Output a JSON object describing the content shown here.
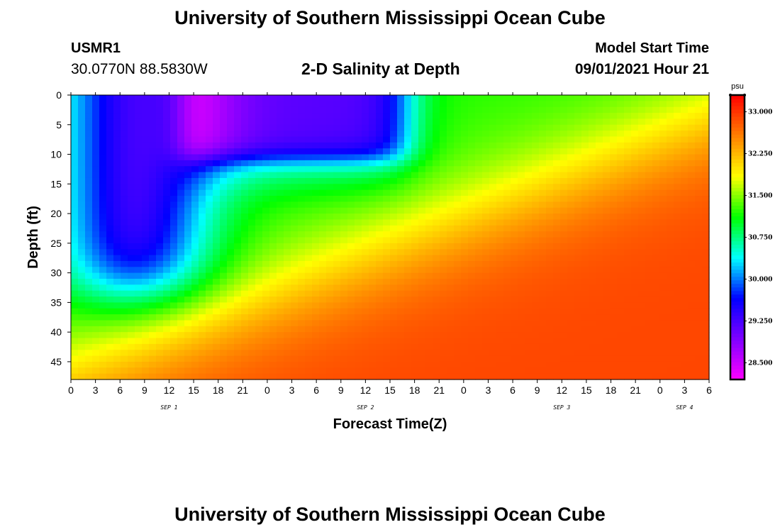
{
  "page": {
    "top_title": "University of Southern Mississippi Ocean Cube",
    "bottom_title": "University of Southern Mississippi Ocean Cube"
  },
  "header": {
    "station_id": "USMR1",
    "coordinates": "30.0770N  88.5830W",
    "plot_title": "2-D Salinity at Depth",
    "model_start_label": "Model Start Time",
    "model_start_value": "09/01/2021 Hour 21"
  },
  "chart_data": {
    "type": "heatmap",
    "title": "2-D Salinity at Depth",
    "xlabel": "Forecast Time(Z)",
    "ylabel": "Depth (ft)",
    "x_tick_labels": [
      "0",
      "3",
      "6",
      "9",
      "12",
      "15",
      "18",
      "21",
      "0",
      "3",
      "6",
      "9",
      "12",
      "15",
      "18",
      "21",
      "0",
      "3",
      "6",
      "9",
      "12",
      "15",
      "18",
      "21",
      "0",
      "3",
      "6"
    ],
    "date_labels": [
      {
        "label": "SEP 1",
        "tick_index": 4
      },
      {
        "label": "SEP 2",
        "tick_index": 12
      },
      {
        "label": "SEP 3",
        "tick_index": 20
      },
      {
        "label": "SEP 4",
        "tick_index": 25
      }
    ],
    "xlim_hours": [
      0,
      78
    ],
    "y_ticks": [
      0,
      5,
      10,
      15,
      20,
      25,
      30,
      35,
      40,
      45
    ],
    "ylim": [
      0,
      48
    ],
    "y_inverted": true,
    "colorbar": {
      "unit_label": "psu",
      "ticks": [
        "33.000",
        "32.250",
        "31.500",
        "30.750",
        "30.000",
        "29.250",
        "28.500"
      ],
      "tick_values": [
        33.0,
        32.25,
        31.5,
        30.75,
        30.0,
        29.25,
        28.5
      ],
      "range": [
        28.2,
        33.3
      ],
      "colors": [
        "#ff00ff",
        "#8000ff",
        "#0000ff",
        "#00ffff",
        "#00ff00",
        "#ffff00",
        "#ff8000",
        "#ff0000"
      ]
    },
    "grid": false
  }
}
